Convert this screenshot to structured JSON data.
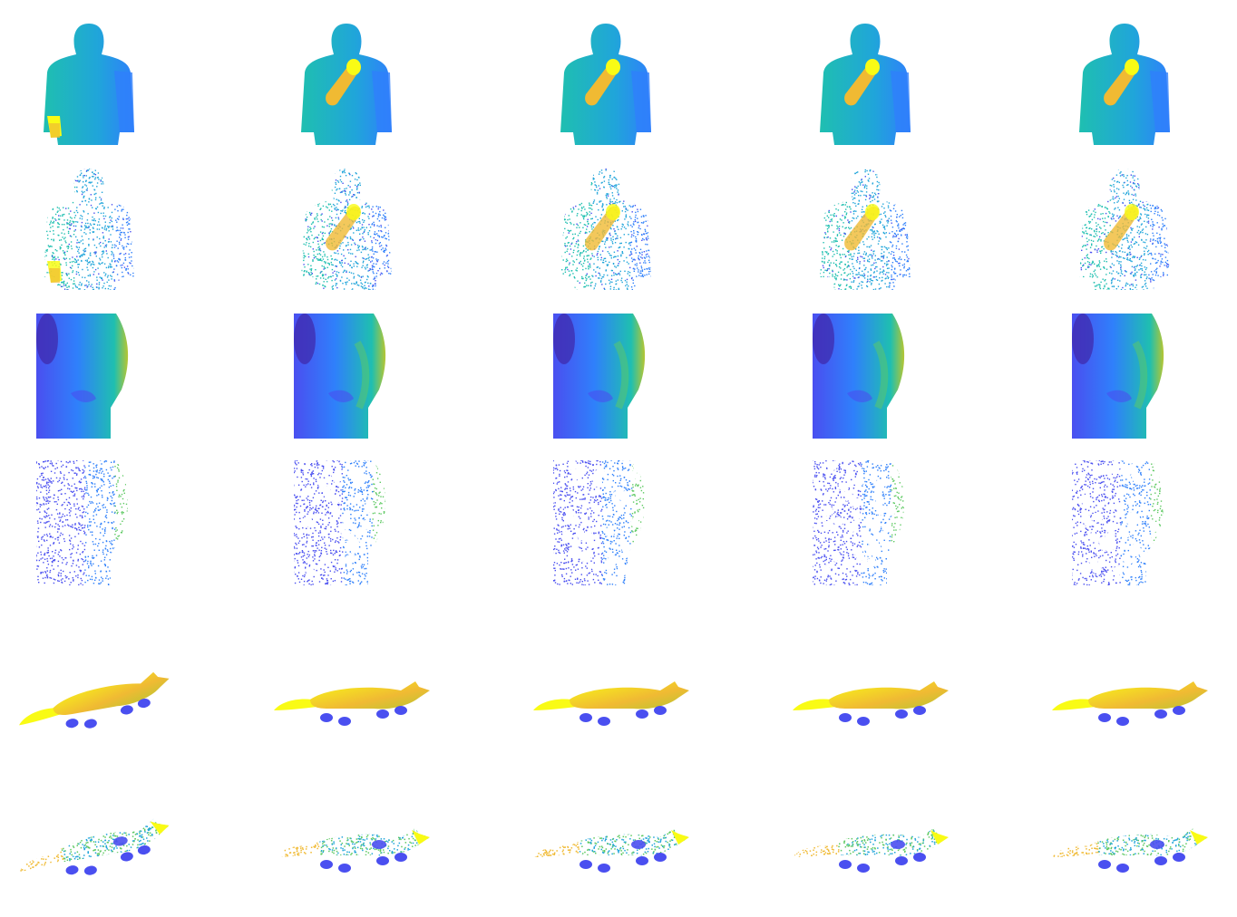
{
  "figure": {
    "colormap": [
      "#3e26a8",
      "#4a4ff0",
      "#2f80fb",
      "#20a5da",
      "#1fbfb0",
      "#5ec962",
      "#b6c632",
      "#f0ba33",
      "#f9fb15"
    ],
    "background": "#ffffff",
    "rows": [
      {
        "subject": "person-front",
        "render": "surface",
        "cells": 5
      },
      {
        "subject": "person-front",
        "render": "point-cloud",
        "cells": 5
      },
      {
        "subject": "person-torso",
        "render": "surface",
        "cells": 5
      },
      {
        "subject": "person-torso",
        "render": "point-cloud",
        "cells": 5
      },
      {
        "subject": "fox",
        "render": "surface",
        "cells": 5
      },
      {
        "subject": "fox",
        "render": "point-cloud",
        "cells": 5
      }
    ]
  }
}
